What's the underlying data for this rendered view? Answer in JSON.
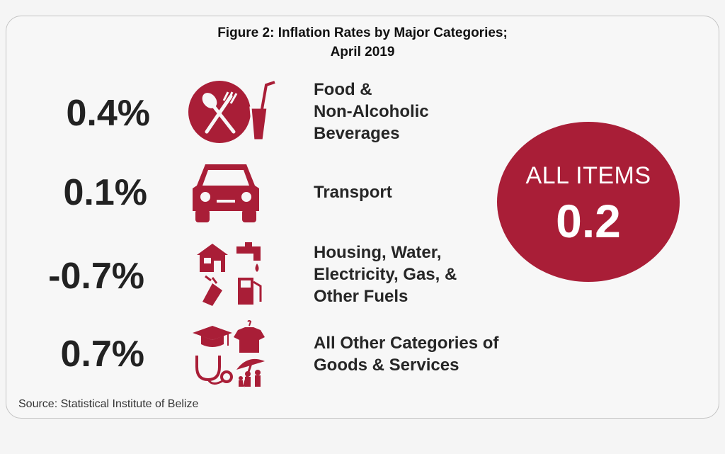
{
  "title_line1": "Figure 2: Inflation Rates by Major Categories;",
  "title_line2": "April 2019",
  "rows": [
    {
      "value": "0.4%",
      "label_lines": [
        "Food &",
        "Non-Alcoholic",
        "Beverages"
      ],
      "icon": "food-beverage-icon"
    },
    {
      "value": "0.1%",
      "label_lines": [
        "Transport"
      ],
      "icon": "car-icon"
    },
    {
      "value": "-0.7%",
      "label_lines": [
        "Housing, Water,",
        "Electricity, Gas, &",
        "Other Fuels"
      ],
      "icon": "housing-utilities-icon"
    },
    {
      "value": "0.7%",
      "label_lines": [
        "All Other Categories of",
        "Goods & Services"
      ],
      "icon": "other-goods-services-icon"
    }
  ],
  "all_items": {
    "label": "ALL ITEMS",
    "value": "0.2"
  },
  "source": "Source: Statistical Institute of Belize",
  "colors": {
    "accent": "#a91e37",
    "text": "#262626",
    "background": "#f7f7f7"
  }
}
